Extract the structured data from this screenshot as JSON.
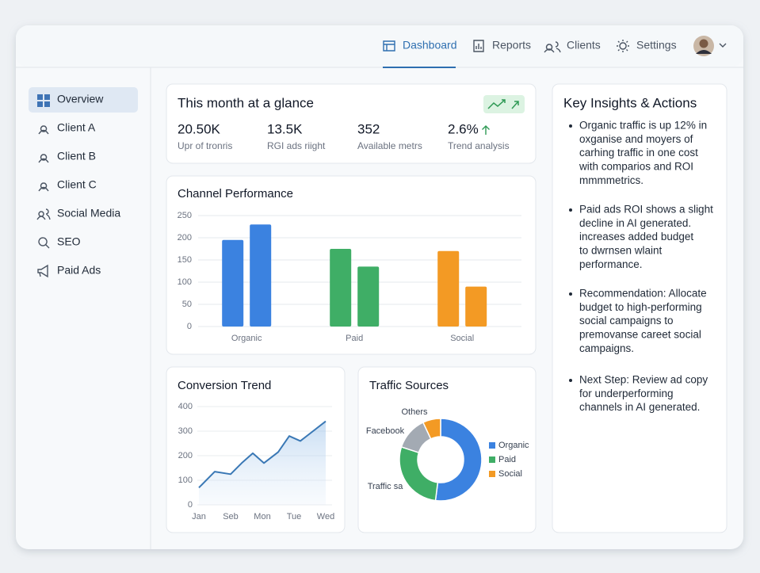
{
  "nav": {
    "items": [
      "Dashboard",
      "Reports",
      "Clients",
      "Settings"
    ],
    "active": "Dashboard"
  },
  "sidebar": {
    "items": [
      "Overview",
      "Client A",
      "Client B",
      "Client C",
      "Social Media",
      "SEO",
      "Paid Ads"
    ],
    "active": "Overview"
  },
  "glance": {
    "title": "This month at a glance",
    "stats": [
      {
        "value": "20.50K",
        "label": "Upr of tronris"
      },
      {
        "value": "13.5K",
        "label": "RGI ads riight"
      },
      {
        "value": "352",
        "label": "Available metrs"
      },
      {
        "value": "2.6%",
        "label": "Trend analysis"
      }
    ]
  },
  "channel_performance": {
    "type": "bar",
    "title": "Channel Performance",
    "categories": [
      "Organic",
      "Paid",
      "Social"
    ],
    "colors": [
      "#3b82e0",
      "#3fae66",
      "#f39a24"
    ],
    "values": [
      [
        195,
        230
      ],
      [
        175,
        135
      ],
      [
        170,
        90
      ]
    ],
    "ylim": [
      0,
      250
    ],
    "yticks": [
      0,
      50,
      100,
      150,
      200,
      250
    ],
    "grid": true
  },
  "conversion_trend": {
    "type": "line",
    "title": "Conversion Trend",
    "x": [
      0,
      0.5,
      1,
      1.35,
      1.7,
      2.05,
      2.5,
      2.85,
      3.2,
      3.6,
      4
    ],
    "values": [
      70,
      135,
      125,
      170,
      210,
      170,
      215,
      280,
      260,
      300,
      340
    ],
    "color": "#3a78b5",
    "xlim": [
      0,
      4
    ],
    "xticks": [
      {
        "value": 0,
        "label": "Jan"
      },
      {
        "value": 1,
        "label": "Seb"
      },
      {
        "value": 2,
        "label": "Mon"
      },
      {
        "value": 3,
        "label": "Tue"
      },
      {
        "value": 4,
        "label": "Wed"
      }
    ],
    "ylim": [
      0,
      400
    ],
    "yticks": [
      0,
      100,
      200,
      300,
      400
    ],
    "grid": true
  },
  "traffic_sources": {
    "type": "pie",
    "title": "Traffic Sources",
    "slices": [
      {
        "name": "Organic",
        "value": 52,
        "color": "#3b82e0"
      },
      {
        "name": "Paid",
        "value": 28,
        "color": "#3fae66"
      },
      {
        "name": "Social",
        "value": 7,
        "color": "#f39a24"
      }
    ],
    "others": {
      "name": "Others",
      "value": 13,
      "color": "#a3aab3"
    },
    "annotations": [
      "Facebook",
      "Traffic sa"
    ]
  },
  "insights": {
    "title": "Key Insights & Actions",
    "bullets": [
      [
        "Organic traffic is up 12% in",
        "oxganise and moyers of",
        "carhing traffic in one cost",
        "with comparios and ROI",
        "mmmmetrics."
      ],
      [
        "Paid ads ROI shows a slight",
        "decline in AI generated.",
        "increases added budget",
        "to dwrnsen wlaint",
        "performance."
      ],
      [
        "Recommendation: Allocate",
        "budget to high-performing",
        "social campaigns to",
        "premovanse careet social",
        "campaigns."
      ],
      [
        "Next Step: Review ad copy",
        "for underperforming",
        "channels in AI generated."
      ]
    ]
  }
}
